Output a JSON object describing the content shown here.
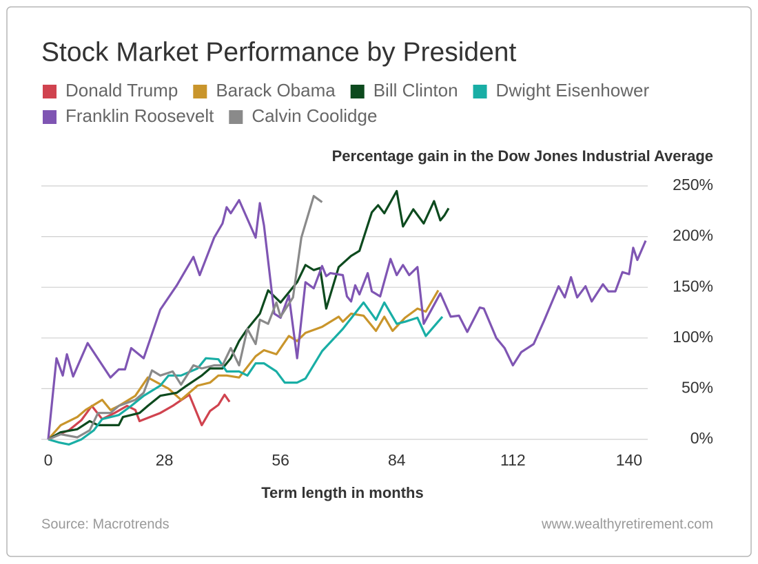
{
  "chart_data": {
    "type": "line",
    "title": "Stock Market Performance by President",
    "subtitle": "Percentage gain in the Dow Jones Industrial Average",
    "x_label": "Term length in months",
    "source": "Source: Macrotrends",
    "credit": "www.wealthyretirement.com",
    "xlim": [
      0,
      144.5
    ],
    "xticks": [
      0,
      28,
      56,
      84,
      112,
      140
    ],
    "ylim": [
      0,
      250
    ],
    "yticks": [
      {
        "value": 0,
        "label": "0%"
      },
      {
        "value": 50,
        "label": "50%"
      },
      {
        "value": 100,
        "label": "100%"
      },
      {
        "value": 150,
        "label": "150%"
      },
      {
        "value": 200,
        "label": "200%"
      },
      {
        "value": 250,
        "label": "250%"
      }
    ],
    "grid": true,
    "series": [
      {
        "name": "Donald Trump",
        "color": "#d0434f",
        "x": [
          0,
          2.5,
          5,
          8,
          10.5,
          13,
          16,
          19,
          21,
          22,
          27,
          30,
          34,
          37,
          39,
          41,
          42.5,
          43.7
        ],
        "values": [
          0,
          5,
          9,
          19,
          33,
          20,
          26,
          33,
          29,
          18,
          26,
          33,
          44,
          14,
          28,
          34,
          44,
          37
        ]
      },
      {
        "name": "Barack Obama",
        "color": "#c9952b",
        "x": [
          0,
          3,
          7,
          9,
          13,
          15,
          17,
          21,
          24,
          29,
          32,
          36,
          39,
          41,
          43,
          46,
          50,
          52,
          55,
          58,
          60,
          62,
          66,
          70,
          71,
          73,
          76,
          79,
          81,
          83,
          86,
          89,
          91,
          94
        ],
        "values": [
          0,
          14,
          22,
          29,
          39,
          29,
          33,
          43,
          61,
          50,
          39,
          53,
          56,
          63,
          63,
          61,
          82,
          88,
          84,
          102,
          97,
          105,
          111,
          121,
          116,
          124,
          122,
          107,
          121,
          107,
          120,
          129,
          126,
          147
        ]
      },
      {
        "name": "Bill Clinton",
        "color": "#0d4a1e",
        "x": [
          0,
          3,
          7,
          10,
          12,
          17,
          18,
          22,
          24,
          27,
          31,
          33,
          37,
          39,
          42,
          44,
          46,
          48,
          51,
          53,
          56,
          57,
          60,
          62,
          64,
          65.5,
          67,
          70,
          73,
          75,
          78,
          79.5,
          81,
          84,
          85.5,
          88,
          90.5,
          93,
          94.5,
          95.5,
          96.5
        ],
        "values": [
          0,
          7,
          10,
          18,
          14,
          14,
          22,
          26,
          33,
          43,
          46,
          52,
          63,
          70,
          70,
          80,
          97,
          109,
          124,
          147,
          135,
          140,
          155,
          172,
          167,
          169,
          129,
          170,
          181,
          186,
          224,
          231,
          223,
          245,
          210,
          227,
          213,
          235,
          216,
          221,
          228
        ]
      },
      {
        "name": "Dwight Eisenhower",
        "color": "#19aea5",
        "x": [
          0,
          2.5,
          5,
          8,
          11,
          13,
          17,
          20,
          23,
          27,
          29,
          32,
          36,
          38,
          41,
          43,
          46,
          48,
          50,
          52,
          55,
          57,
          60,
          62,
          66,
          71,
          76,
          79,
          81,
          84,
          86,
          89,
          91,
          95
        ],
        "values": [
          0,
          -3,
          -5,
          0,
          9,
          20,
          24,
          33,
          43,
          53,
          63,
          63,
          70,
          80,
          79,
          67,
          67,
          63,
          75,
          75,
          67,
          56,
          56,
          60,
          87,
          109,
          135,
          118,
          135,
          114,
          116,
          120,
          102,
          121
        ]
      },
      {
        "name": "Franklin Roosevelt",
        "color": "#7f55b3",
        "x": [
          0,
          2,
          3.5,
          4.5,
          6,
          9.5,
          15,
          17,
          18.5,
          20,
          23,
          27,
          31,
          35,
          36.5,
          40,
          42,
          43,
          44,
          46,
          50,
          51,
          52,
          54.5,
          56,
          58,
          60,
          62,
          64,
          66,
          67,
          68,
          71,
          72,
          73,
          74,
          75,
          77,
          78,
          80,
          82.5,
          84,
          85.5,
          87,
          89,
          90.5,
          94.5,
          97,
          99,
          101,
          104,
          105,
          108,
          110,
          112,
          114,
          117,
          119.5,
          123,
          124.5,
          126,
          127.5,
          129.5,
          131,
          133.7,
          135,
          136.7,
          138.4,
          140,
          141,
          142,
          144
        ],
        "values": [
          0,
          80,
          63,
          84,
          62,
          95,
          61,
          69,
          69,
          90,
          80,
          128,
          152,
          180,
          162,
          199,
          213,
          229,
          223,
          236,
          199,
          233,
          211,
          124,
          120,
          142,
          80,
          155,
          149,
          171,
          161,
          164,
          162,
          141,
          136,
          152,
          143,
          164,
          146,
          141,
          178,
          162,
          172,
          162,
          170,
          114,
          144,
          121,
          122,
          106,
          130,
          129,
          100,
          90,
          73,
          86,
          94,
          117,
          151,
          140,
          160,
          140,
          151,
          136,
          153,
          146,
          146,
          165,
          163,
          189,
          177,
          196
        ]
      },
      {
        "name": "Calvin Coolidge",
        "color": "#8a8a8a",
        "x": [
          0,
          3,
          7,
          10,
          12,
          15,
          17,
          21,
          23,
          25,
          27,
          30,
          32,
          35,
          37,
          40,
          42,
          44,
          46,
          48,
          50,
          51,
          53,
          55,
          56,
          59,
          61,
          64,
          66
        ],
        "values": [
          0,
          5,
          2,
          9,
          26,
          26,
          33,
          39,
          46,
          68,
          63,
          67,
          54,
          73,
          70,
          73,
          73,
          90,
          73,
          109,
          94,
          118,
          114,
          135,
          121,
          140,
          199,
          240,
          234
        ]
      }
    ]
  }
}
